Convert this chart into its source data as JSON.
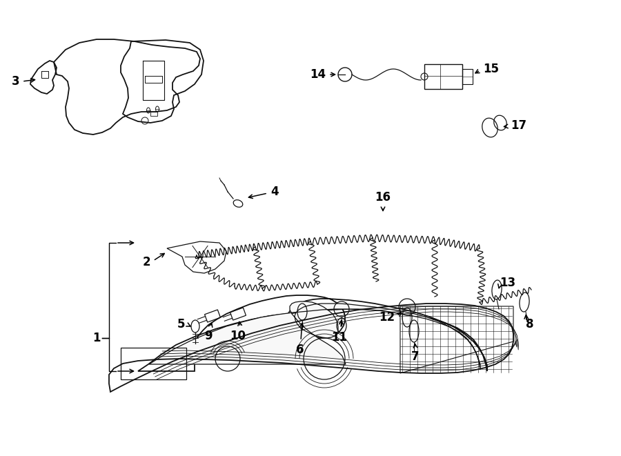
{
  "bg_color": "#ffffff",
  "line_color": "#111111",
  "lw": 1.3,
  "label_fontsize": 12,
  "fig_w": 9.0,
  "fig_h": 6.61,
  "dpi": 100
}
